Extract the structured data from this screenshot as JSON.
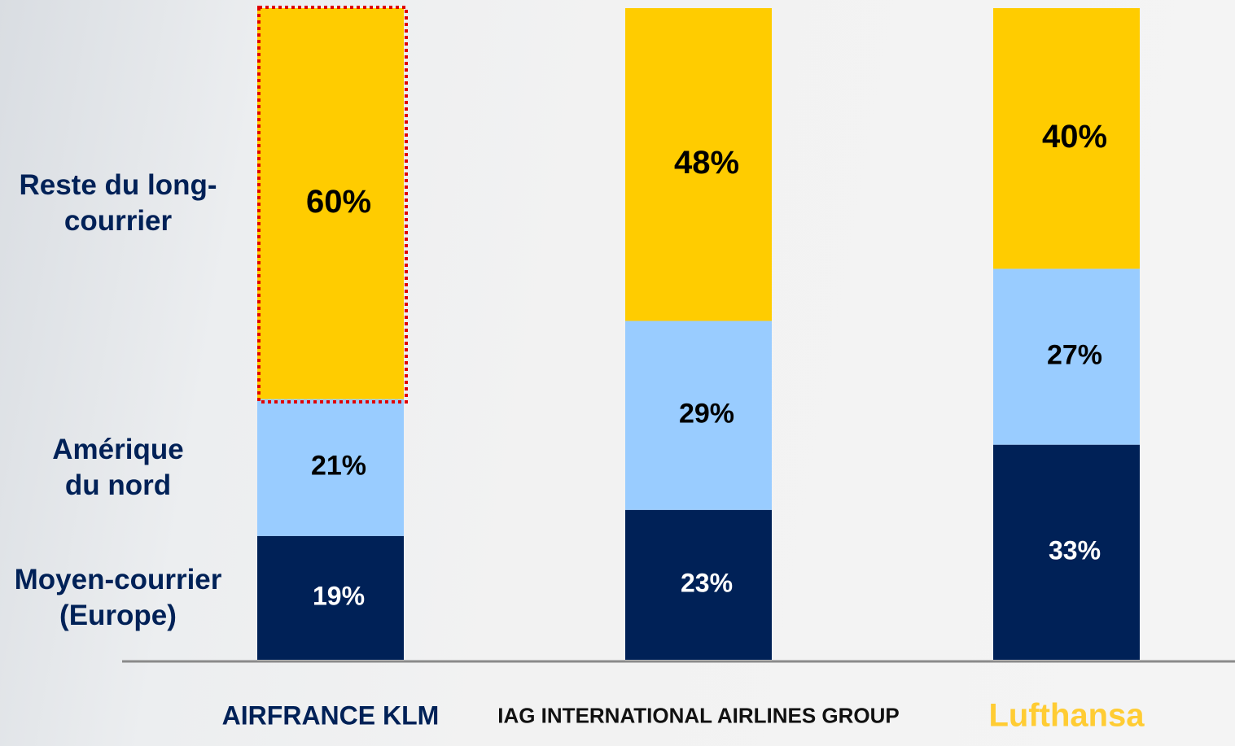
{
  "chart_data": {
    "type": "bar",
    "stacked": true,
    "categories": [
      "AIRFRANCE KLM",
      "IAG INTERNATIONAL AIRLINES GROUP",
      "Lufthansa"
    ],
    "category_colors": [
      "#002157",
      "#111111",
      "#ffcc33"
    ],
    "series": [
      {
        "name": "Moyen-courrier (Europe)",
        "color": "#002157",
        "label_color": "#ffffff",
        "values": [
          19,
          23,
          33
        ],
        "value_labels": [
          "19%",
          "23%",
          "33%"
        ]
      },
      {
        "name": "Amérique du nord",
        "color": "#99ccff",
        "label_color": "#000000",
        "values": [
          21,
          29,
          27
        ],
        "value_labels": [
          "21%",
          "29%",
          "27%"
        ]
      },
      {
        "name": "Reste du long-courrier",
        "color": "#ffcc00",
        "label_color": "#000000",
        "values": [
          60,
          48,
          40
        ],
        "value_labels": [
          "60%",
          "48%",
          "40%"
        ]
      }
    ],
    "ylim": [
      0,
      100
    ]
  }
}
